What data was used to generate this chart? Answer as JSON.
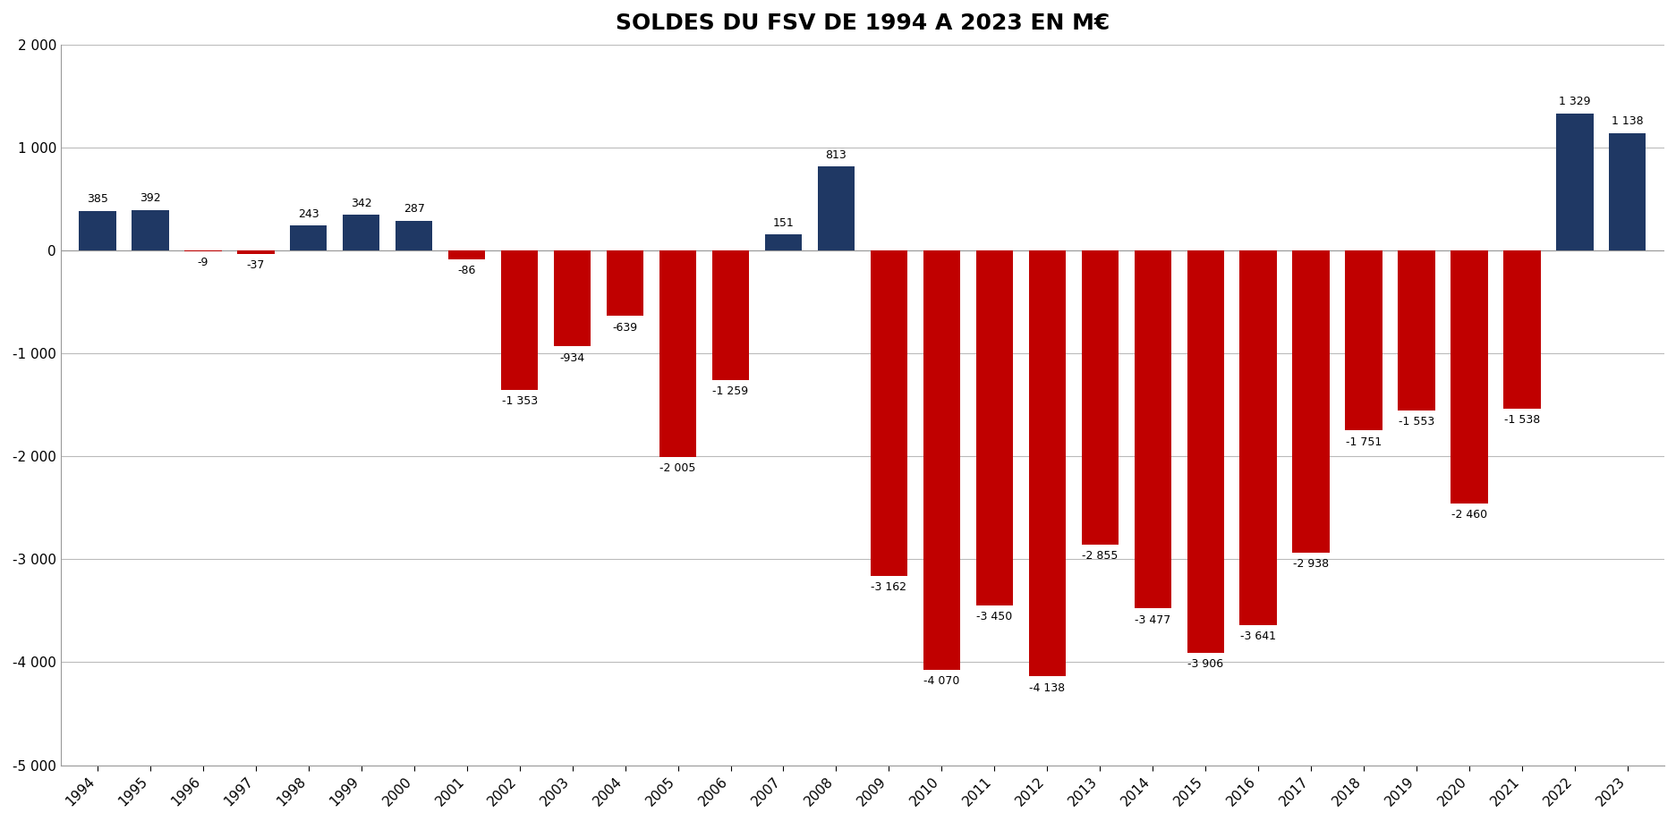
{
  "title": "SOLDES DU FSV DE 1994 A 2023 EN M€",
  "years": [
    1994,
    1995,
    1996,
    1997,
    1998,
    1999,
    2000,
    2001,
    2002,
    2003,
    2004,
    2005,
    2006,
    2007,
    2008,
    2009,
    2010,
    2011,
    2012,
    2013,
    2014,
    2015,
    2016,
    2017,
    2018,
    2019,
    2020,
    2021,
    2022,
    2023
  ],
  "values": [
    385,
    392,
    -9,
    -37,
    243,
    342,
    287,
    -86,
    -1353,
    -934,
    -639,
    -2005,
    -1259,
    151,
    813,
    -3162,
    -4070,
    -3450,
    -4138,
    -2855,
    -3477,
    -3906,
    -3641,
    -2938,
    -1751,
    -1553,
    -2460,
    -1538,
    1329,
    1138
  ],
  "positive_color": "#1F3864",
  "negative_color": "#C00000",
  "ylim": [
    -5000,
    2000
  ],
  "yticks": [
    -5000,
    -4000,
    -3000,
    -2000,
    -1000,
    0,
    1000,
    2000
  ],
  "title_fontsize": 18,
  "background_color": "#FFFFFF",
  "grid_color": "#BBBBBB",
  "bar_width": 0.7
}
